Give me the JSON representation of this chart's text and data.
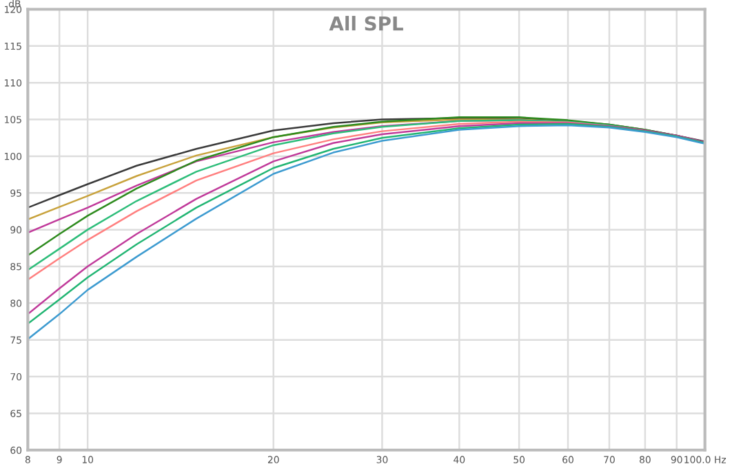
{
  "chart_data": {
    "type": "line",
    "title": "All SPL",
    "ylabel": "dB",
    "log": "x",
    "x": [
      8,
      9,
      10,
      12,
      15,
      20,
      25,
      30,
      40,
      50,
      60,
      70,
      80,
      90,
      100
    ],
    "xlim": [
      8,
      100
    ],
    "xticks": [
      8,
      9,
      10,
      20,
      30,
      40,
      50,
      60,
      70,
      80,
      90,
      {
        "value": 100,
        "label": "100.0 Hz"
      }
    ],
    "ylim": [
      60,
      120
    ],
    "yticks": [
      60,
      65,
      70,
      75,
      80,
      85,
      90,
      95,
      100,
      105,
      110,
      115,
      120
    ],
    "grid": true,
    "legend": false,
    "marker": "none",
    "line_style": "solid",
    "series": [
      {
        "color": "#3a3a3a",
        "values": [
          93,
          94.7,
          96.2,
          98.7,
          101.0,
          103.5,
          104.5,
          105.0,
          105.2,
          105.1,
          104.8,
          104.3,
          103.6,
          102.8,
          102.0
        ]
      },
      {
        "color": "#c8a23c",
        "values": [
          91.4,
          93.1,
          94.6,
          97.3,
          100.1,
          102.6,
          103.9,
          104.6,
          105.0,
          105.0,
          104.7,
          null,
          null,
          null,
          null
        ]
      },
      {
        "color": "#c0399a",
        "values": [
          89.6,
          91.4,
          93.0,
          96.0,
          99.3,
          101.9,
          103.3,
          104.1,
          104.8,
          104.9,
          104.7,
          104.2,
          103.5,
          102.8,
          101.9
        ]
      },
      {
        "color": "#2e8b1e",
        "values": [
          86.5,
          89.4,
          91.9,
          95.6,
          99.4,
          102.6,
          104.0,
          104.7,
          105.3,
          105.3,
          104.9,
          104.3,
          103.6,
          102.8,
          101.9
        ]
      },
      {
        "color": "#2ebd7a",
        "values": [
          84.5,
          87.4,
          90.0,
          93.9,
          97.9,
          101.5,
          103.1,
          104.0,
          104.8,
          104.9,
          104.7,
          104.2,
          103.5,
          102.7,
          101.8
        ]
      },
      {
        "color": "#ff7f7f",
        "values": [
          83.2,
          86.1,
          88.6,
          92.5,
          96.7,
          100.4,
          102.3,
          103.4,
          104.4,
          104.7,
          104.6,
          104.1,
          103.5,
          null,
          null
        ]
      },
      {
        "color": "#c03a9a",
        "values": [
          78.5,
          82.0,
          85.0,
          89.4,
          94.2,
          99.3,
          101.8,
          103.0,
          104.1,
          104.5,
          104.5,
          104.1,
          103.5,
          102.8,
          101.9
        ]
      },
      {
        "color": "#22b573",
        "values": [
          77.2,
          80.5,
          83.5,
          88.0,
          93.0,
          98.4,
          101.0,
          102.5,
          103.8,
          104.3,
          104.4,
          104.0,
          103.4,
          102.7,
          101.8
        ]
      },
      {
        "color": "#3d9bd0",
        "values": [
          75.1,
          78.5,
          81.8,
          86.3,
          91.5,
          97.6,
          100.5,
          102.1,
          103.6,
          104.1,
          104.2,
          103.9,
          103.3,
          102.6,
          101.7
        ]
      }
    ]
  }
}
